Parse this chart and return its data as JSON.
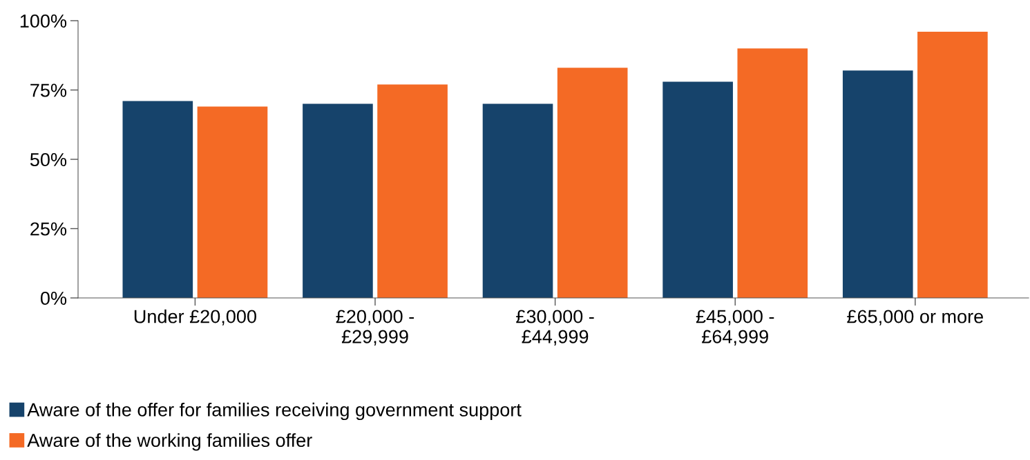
{
  "chart_data": {
    "type": "bar",
    "categories": [
      "Under £20,000",
      "£20,000 -\n£29,999",
      "£30,000 -\n£44,999",
      "£45,000 -\n£64,999",
      "£65,000 or more"
    ],
    "series": [
      {
        "name": "Aware of the offer for families receiving government support",
        "color": "#16436b",
        "values": [
          71,
          70,
          70,
          78,
          82
        ]
      },
      {
        "name": "Aware of the working families offer",
        "color": "#f46a25",
        "values": [
          69,
          77,
          83,
          90,
          96
        ]
      }
    ],
    "ylim": [
      0,
      100
    ],
    "yticks": [
      {
        "value": 0,
        "label": "0%"
      },
      {
        "value": 25,
        "label": "25%"
      },
      {
        "value": 50,
        "label": "50%"
      },
      {
        "value": 75,
        "label": "75%"
      },
      {
        "value": 100,
        "label": "100%"
      }
    ],
    "grid": false,
    "legend": "bottom left"
  }
}
